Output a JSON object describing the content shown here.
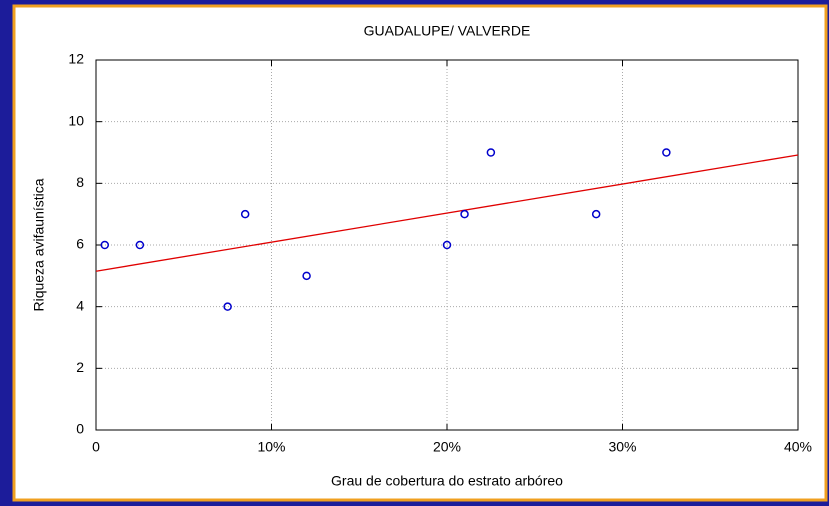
{
  "chart_data": {
    "type": "scatter",
    "title": "GUADALUPE/ VALVERDE",
    "x_label": "Grau de cobertura do estrato arbóreo",
    "y_label": "Riqueza avifaunística",
    "x": [
      0.5,
      2.5,
      7.5,
      8.5,
      12,
      20,
      21,
      22.5,
      28.5,
      32.5
    ],
    "values": [
      6,
      6,
      4,
      7,
      5,
      6,
      7,
      9,
      7,
      9
    ],
    "color": "#0000cc",
    "fit": {
      "x": [
        0,
        40
      ],
      "values": [
        5.15,
        8.92
      ],
      "color": "#e00000"
    },
    "xlim": [
      0,
      40
    ],
    "xticks": [
      0,
      {
        "value": 10,
        "label": "10%"
      },
      {
        "value": 20,
        "label": "20%"
      },
      {
        "value": 30,
        "label": "30%"
      },
      {
        "value": 40,
        "label": "40%"
      }
    ],
    "ylim": [
      0,
      12
    ],
    "yticks": [
      0,
      2,
      4,
      6,
      8,
      10,
      12
    ],
    "grid": true
  }
}
